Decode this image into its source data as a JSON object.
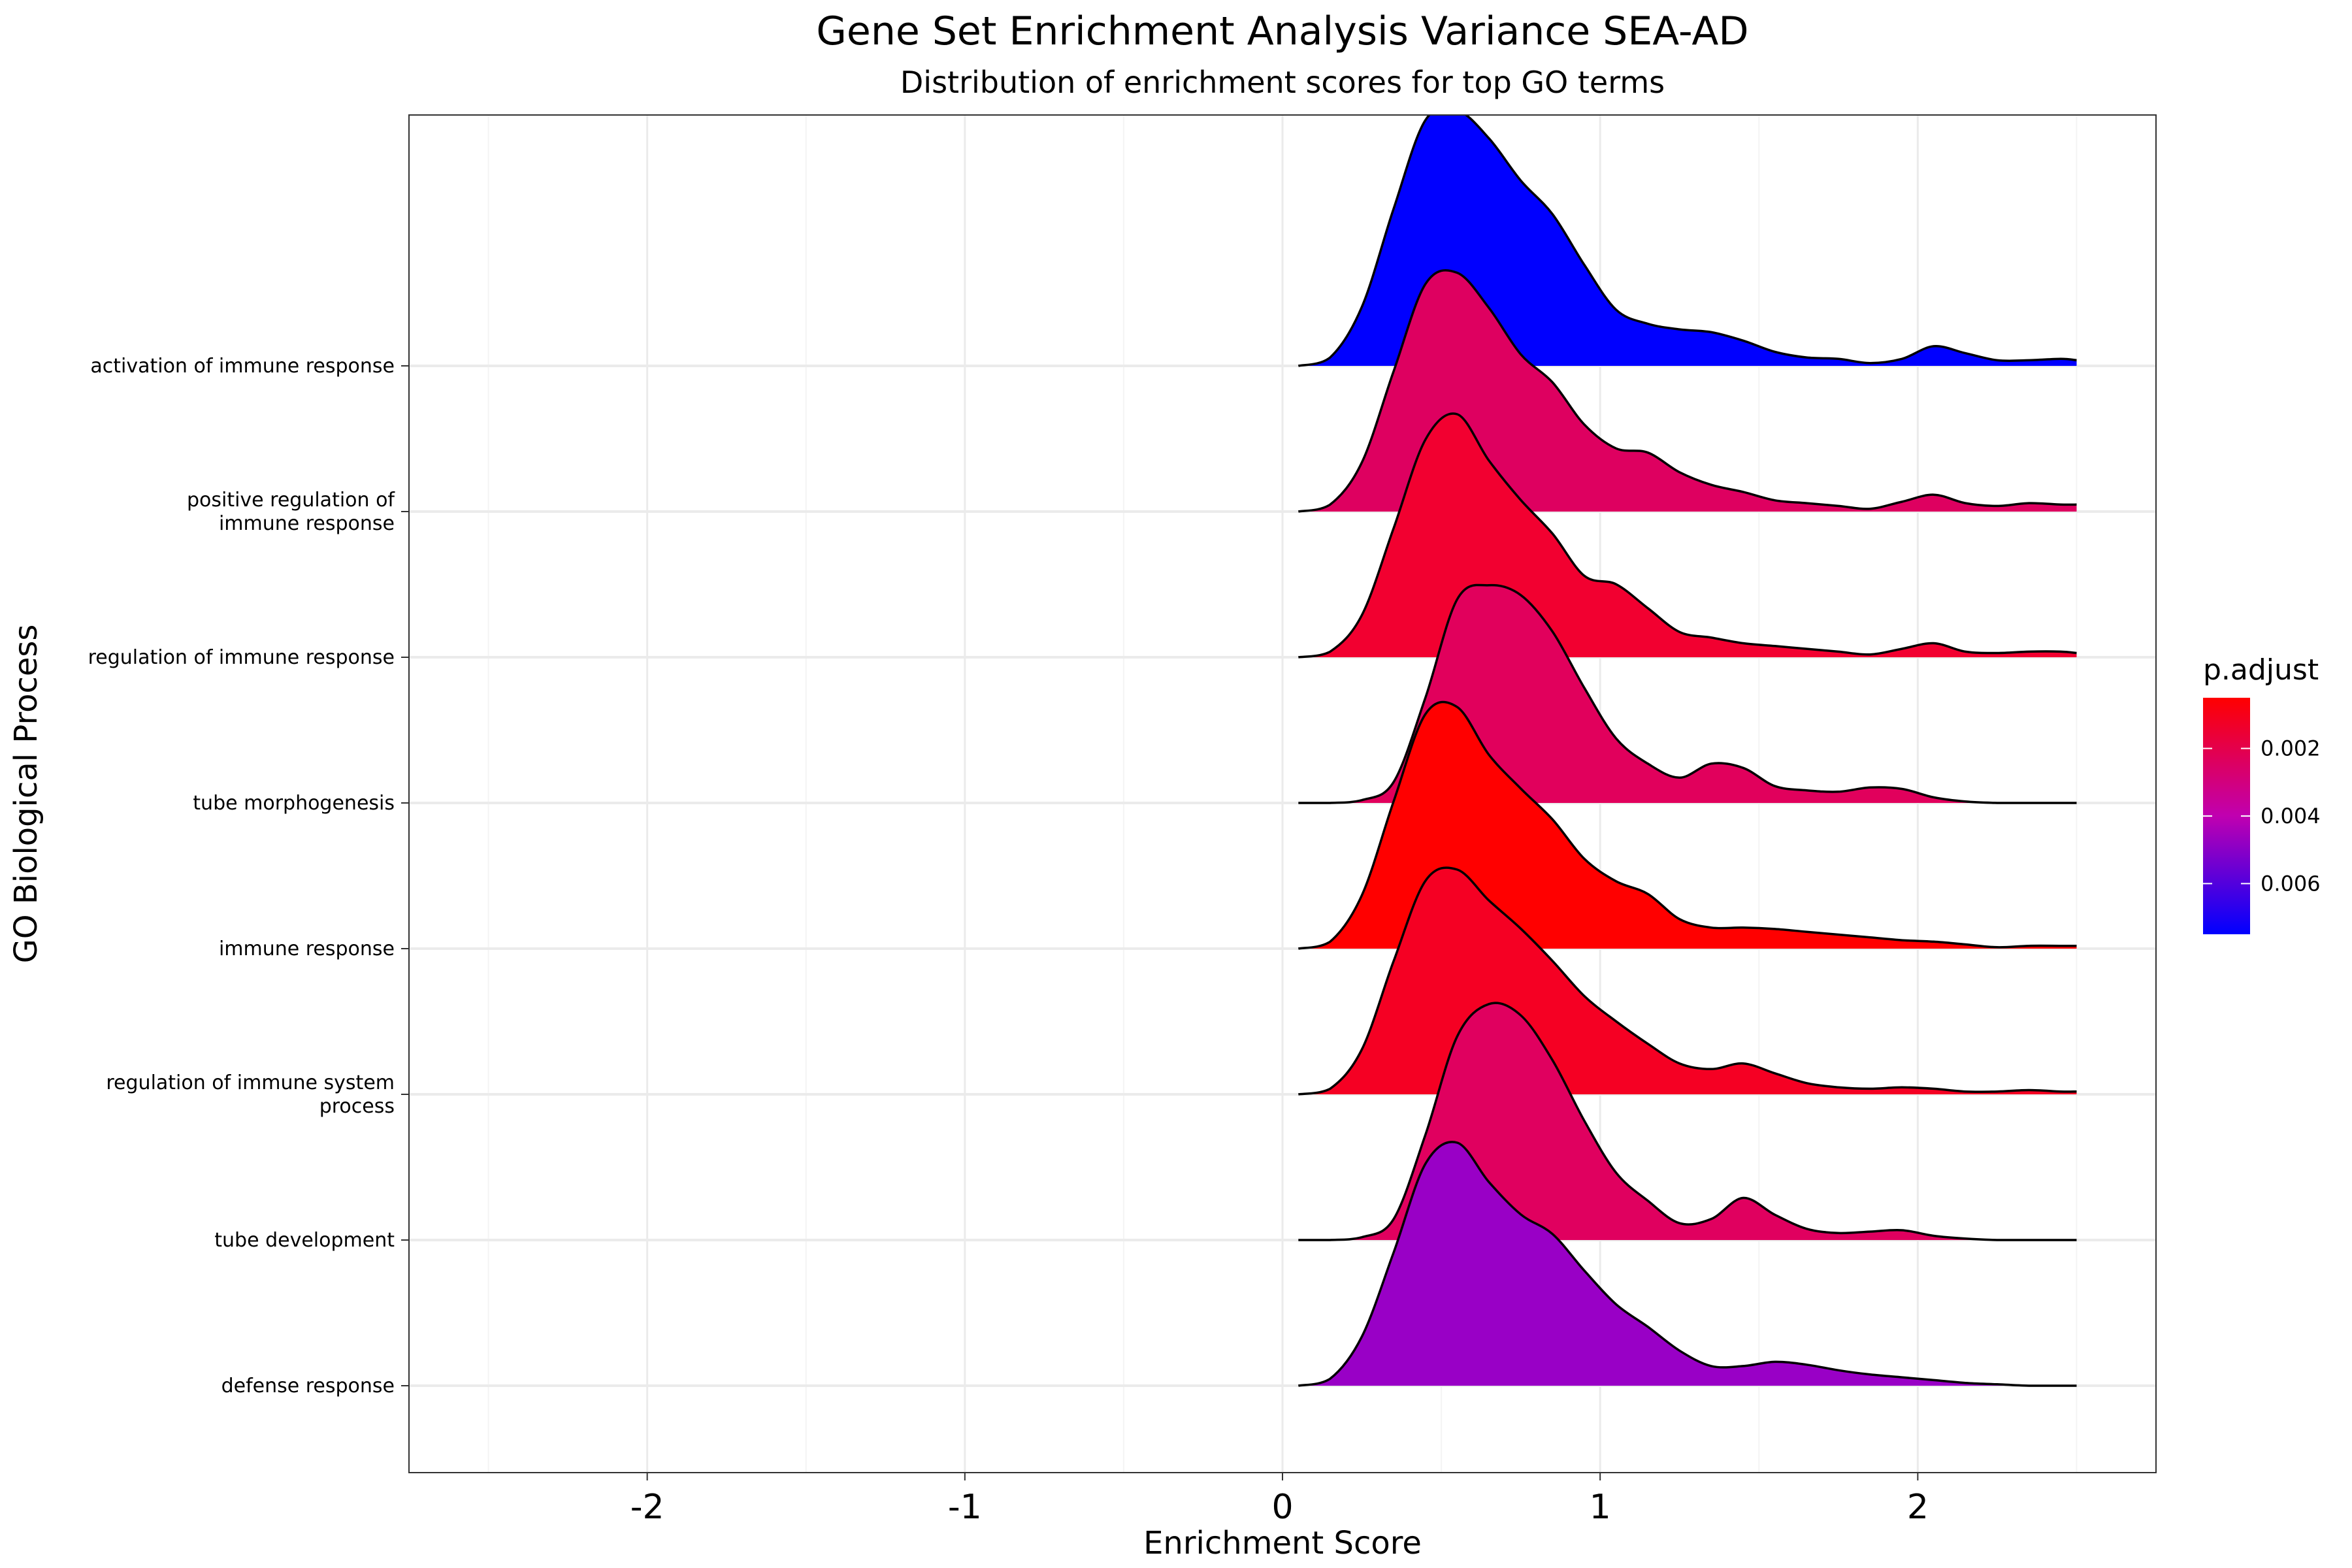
{
  "chart_data": {
    "type": "ridgeline",
    "title": "Gene Set Enrichment Analysis Variance SEA-AD",
    "subtitle": "Distribution of enrichment scores for top GO terms",
    "xlabel": "Enrichment Score",
    "ylabel": "GO Biological Process",
    "xlim": [
      -2.75,
      2.75
    ],
    "x_ticks": [
      -2,
      -1,
      0,
      1,
      2
    ],
    "x_tick_labels": [
      "-2",
      "-1",
      "0",
      "1",
      "2"
    ],
    "grid": true,
    "legend": {
      "title": "p.adjust",
      "placement": "right",
      "range": [
        0.0005,
        0.0075
      ],
      "ticks": [
        0.002,
        0.004,
        0.006
      ],
      "tick_labels": [
        "0.002",
        "0.004",
        "0.006"
      ],
      "low_color": "#ff0000",
      "high_color": "#0000ff"
    },
    "x_grid": [
      0.05,
      0.15,
      0.25,
      0.35,
      0.45,
      0.55,
      0.65,
      0.75,
      0.85,
      0.95,
      1.05,
      1.15,
      1.25,
      1.35,
      1.45,
      1.55,
      1.65,
      1.75,
      1.85,
      1.95,
      2.05,
      2.15,
      2.25,
      2.35,
      2.45,
      2.5
    ],
    "series": [
      {
        "name": "defense response",
        "label_lines": [
          "defense response"
        ],
        "color": "#9900c6",
        "p_adjust": 0.0058,
        "values": [
          0.0,
          0.05,
          0.35,
          0.95,
          1.58,
          1.73,
          1.45,
          1.22,
          1.08,
          0.82,
          0.58,
          0.42,
          0.25,
          0.14,
          0.14,
          0.17,
          0.15,
          0.11,
          0.08,
          0.06,
          0.04,
          0.02,
          0.01,
          0.0,
          0.0,
          0.0
        ]
      },
      {
        "name": "tube development",
        "label_lines": [
          "tube development"
        ],
        "color": "#e0005f",
        "p_adjust": 0.0032,
        "values": [
          0.0,
          0.0,
          0.02,
          0.15,
          0.75,
          1.45,
          1.68,
          1.6,
          1.28,
          0.85,
          0.48,
          0.28,
          0.12,
          0.15,
          0.3,
          0.18,
          0.08,
          0.05,
          0.06,
          0.07,
          0.03,
          0.01,
          0.0,
          0.0,
          0.0,
          0.0
        ]
      },
      {
        "name": "regulation of immune system process",
        "label_lines": [
          "regulation of immune system",
          "process"
        ],
        "color": "#f50023",
        "p_adjust": 0.0016,
        "values": [
          0.0,
          0.04,
          0.32,
          0.95,
          1.52,
          1.6,
          1.38,
          1.18,
          0.95,
          0.7,
          0.52,
          0.36,
          0.22,
          0.18,
          0.22,
          0.15,
          0.08,
          0.05,
          0.04,
          0.05,
          0.04,
          0.02,
          0.02,
          0.03,
          0.02,
          0.02
        ]
      },
      {
        "name": "immune response",
        "label_lines": [
          "immune response"
        ],
        "color": "#ff0000",
        "p_adjust": 0.0006,
        "values": [
          0.0,
          0.05,
          0.38,
          1.05,
          1.67,
          1.72,
          1.38,
          1.14,
          0.92,
          0.64,
          0.48,
          0.39,
          0.21,
          0.15,
          0.15,
          0.14,
          0.12,
          0.1,
          0.08,
          0.06,
          0.05,
          0.03,
          0.01,
          0.02,
          0.02,
          0.02
        ]
      },
      {
        "name": "tube morphogenesis",
        "label_lines": [
          "tube morphogenesis"
        ],
        "color": "#e1005c",
        "p_adjust": 0.0031,
        "values": [
          0.0,
          0.0,
          0.02,
          0.15,
          0.75,
          1.45,
          1.55,
          1.48,
          1.22,
          0.82,
          0.46,
          0.28,
          0.18,
          0.28,
          0.25,
          0.12,
          0.09,
          0.08,
          0.11,
          0.1,
          0.04,
          0.01,
          0.0,
          0.0,
          0.0,
          0.0
        ]
      },
      {
        "name": "regulation of immune response",
        "label_lines": [
          "regulation of immune response"
        ],
        "color": "#f20030",
        "p_adjust": 0.0019,
        "values": [
          0.0,
          0.04,
          0.3,
          0.92,
          1.55,
          1.73,
          1.4,
          1.12,
          0.88,
          0.58,
          0.52,
          0.35,
          0.18,
          0.14,
          0.1,
          0.08,
          0.06,
          0.04,
          0.02,
          0.06,
          0.1,
          0.04,
          0.03,
          0.04,
          0.04,
          0.03
        ]
      },
      {
        "name": "positive regulation of immune response",
        "label_lines": [
          "positive regulation of",
          "immune response"
        ],
        "color": "#de0060",
        "p_adjust": 0.0033,
        "values": [
          0.0,
          0.05,
          0.35,
          1.0,
          1.62,
          1.7,
          1.45,
          1.12,
          0.92,
          0.62,
          0.45,
          0.42,
          0.28,
          0.19,
          0.14,
          0.08,
          0.06,
          0.04,
          0.02,
          0.07,
          0.12,
          0.06,
          0.04,
          0.06,
          0.05,
          0.05
        ]
      },
      {
        "name": "activation of immune response",
        "label_lines": [
          "activation of immune response"
        ],
        "color": "#0000ff",
        "p_adjust": 0.007,
        "values": [
          0.0,
          0.06,
          0.42,
          1.12,
          1.75,
          1.82,
          1.62,
          1.32,
          1.08,
          0.72,
          0.4,
          0.3,
          0.26,
          0.24,
          0.18,
          0.1,
          0.06,
          0.05,
          0.02,
          0.05,
          0.14,
          0.09,
          0.04,
          0.04,
          0.05,
          0.04
        ]
      }
    ]
  }
}
